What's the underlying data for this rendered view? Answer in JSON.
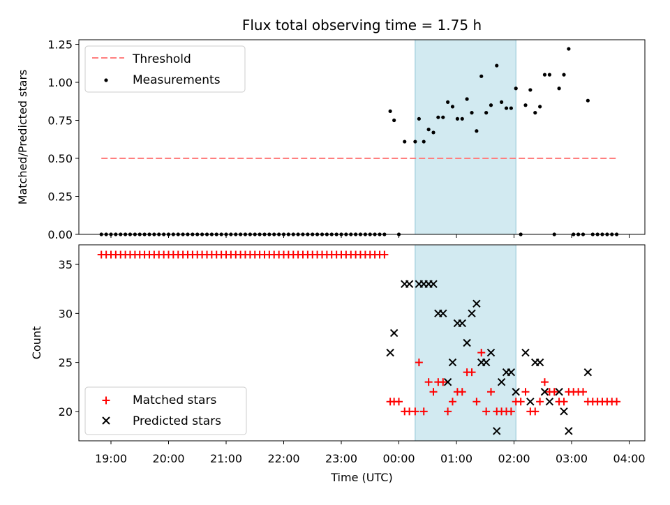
{
  "chart_data": [
    {
      "type": "scatter",
      "title": "Flux total observing time = 1.75 h",
      "ylabel": "Matched/Predicted stars",
      "xlabel": "",
      "ylim": [
        0,
        1.28
      ],
      "yticks": [
        "0.00",
        "0.25",
        "0.50",
        "0.75",
        "1.00",
        "1.25"
      ],
      "x_unit": "hours from 00:00 UTC",
      "shaded_region": [
        0.283,
        2.033
      ],
      "legend": {
        "position": "top-left",
        "threshold_label": "Threshold",
        "measurements_label": "Measurements"
      },
      "threshold": {
        "value": 0.5,
        "x": [
          -5.167,
          3.8
        ],
        "color": "#ff7f7f"
      },
      "measurements": [
        [
          -5.167,
          0
        ],
        [
          -5.083,
          0
        ],
        [
          -5.0,
          0
        ],
        [
          -4.917,
          0
        ],
        [
          -4.833,
          0
        ],
        [
          -4.75,
          0
        ],
        [
          -4.667,
          0
        ],
        [
          -4.583,
          0
        ],
        [
          -4.5,
          0
        ],
        [
          -4.417,
          0
        ],
        [
          -4.333,
          0
        ],
        [
          -4.25,
          0
        ],
        [
          -4.167,
          0
        ],
        [
          -4.083,
          0
        ],
        [
          -4.0,
          0
        ],
        [
          -3.917,
          0
        ],
        [
          -3.833,
          0
        ],
        [
          -3.75,
          0
        ],
        [
          -3.667,
          0
        ],
        [
          -3.583,
          0
        ],
        [
          -3.5,
          0
        ],
        [
          -3.417,
          0
        ],
        [
          -3.333,
          0
        ],
        [
          -3.25,
          0
        ],
        [
          -3.167,
          0
        ],
        [
          -3.083,
          0
        ],
        [
          -3.0,
          0
        ],
        [
          -2.917,
          0
        ],
        [
          -2.833,
          0
        ],
        [
          -2.75,
          0
        ],
        [
          -2.667,
          0
        ],
        [
          -2.583,
          0
        ],
        [
          -2.5,
          0
        ],
        [
          -2.417,
          0
        ],
        [
          -2.333,
          0
        ],
        [
          -2.25,
          0
        ],
        [
          -2.167,
          0
        ],
        [
          -2.083,
          0
        ],
        [
          -2.0,
          0
        ],
        [
          -1.917,
          0
        ],
        [
          -1.833,
          0
        ],
        [
          -1.75,
          0
        ],
        [
          -1.667,
          0
        ],
        [
          -1.583,
          0
        ],
        [
          -1.5,
          0
        ],
        [
          -1.417,
          0
        ],
        [
          -1.333,
          0
        ],
        [
          -1.25,
          0
        ],
        [
          -1.167,
          0
        ],
        [
          -1.083,
          0
        ],
        [
          -1.0,
          0
        ],
        [
          -0.917,
          0
        ],
        [
          -0.833,
          0
        ],
        [
          -0.75,
          0
        ],
        [
          -0.667,
          0
        ],
        [
          -0.583,
          0
        ],
        [
          -0.5,
          0
        ],
        [
          -0.417,
          0
        ],
        [
          -0.333,
          0
        ],
        [
          -0.25,
          0
        ],
        [
          -0.15,
          0.81
        ],
        [
          -0.083,
          0.75
        ],
        [
          0.0,
          0
        ],
        [
          0.1,
          0.61
        ],
        [
          0.283,
          0.61
        ],
        [
          0.35,
          0.76
        ],
        [
          0.433,
          0.61
        ],
        [
          0.517,
          0.69
        ],
        [
          0.6,
          0.67
        ],
        [
          0.683,
          0.77
        ],
        [
          0.767,
          0.77
        ],
        [
          0.85,
          0.87
        ],
        [
          0.933,
          0.84
        ],
        [
          1.017,
          0.76
        ],
        [
          1.1,
          0.76
        ],
        [
          1.183,
          0.89
        ],
        [
          1.267,
          0.8
        ],
        [
          1.35,
          0.68
        ],
        [
          1.433,
          1.04
        ],
        [
          1.517,
          0.8
        ],
        [
          1.6,
          0.85
        ],
        [
          1.7,
          1.11
        ],
        [
          1.783,
          0.87
        ],
        [
          1.867,
          0.83
        ],
        [
          1.95,
          0.83
        ],
        [
          2.033,
          0.96
        ],
        [
          2.117,
          0
        ],
        [
          2.2,
          0.85
        ],
        [
          2.283,
          0.95
        ],
        [
          2.367,
          0.8
        ],
        [
          2.45,
          0.84
        ],
        [
          2.533,
          1.05
        ],
        [
          2.617,
          1.05
        ],
        [
          2.7,
          0
        ],
        [
          2.783,
          0.96
        ],
        [
          2.867,
          1.05
        ],
        [
          2.95,
          1.22
        ],
        [
          3.033,
          0
        ],
        [
          3.117,
          0
        ],
        [
          3.2,
          0
        ],
        [
          3.283,
          0.88
        ],
        [
          3.367,
          0
        ],
        [
          3.45,
          0
        ],
        [
          3.533,
          0
        ],
        [
          3.617,
          0
        ],
        [
          3.7,
          0
        ],
        [
          3.783,
          0
        ]
      ]
    },
    {
      "type": "scatter",
      "title": "",
      "ylabel": "Count",
      "xlabel": "Time (UTC)",
      "ylim": [
        17.0,
        37.0
      ],
      "yticks": [
        "20",
        "25",
        "30",
        "35"
      ],
      "xticks": [
        "19:00",
        "20:00",
        "21:00",
        "22:00",
        "23:00",
        "00:00",
        "01:00",
        "02:00",
        "03:00",
        "04:00"
      ],
      "shaded_region": [
        0.283,
        2.033
      ],
      "legend": {
        "position": "bottom-left",
        "matched_label": "Matched stars",
        "predicted_label": "Predicted stars"
      },
      "matched_stars": [
        [
          -5.167,
          36
        ],
        [
          -5.083,
          36
        ],
        [
          -5.0,
          36
        ],
        [
          -4.917,
          36
        ],
        [
          -4.833,
          36
        ],
        [
          -4.75,
          36
        ],
        [
          -4.667,
          36
        ],
        [
          -4.583,
          36
        ],
        [
          -4.5,
          36
        ],
        [
          -4.417,
          36
        ],
        [
          -4.333,
          36
        ],
        [
          -4.25,
          36
        ],
        [
          -4.167,
          36
        ],
        [
          -4.083,
          36
        ],
        [
          -4.0,
          36
        ],
        [
          -3.917,
          36
        ],
        [
          -3.833,
          36
        ],
        [
          -3.75,
          36
        ],
        [
          -3.667,
          36
        ],
        [
          -3.583,
          36
        ],
        [
          -3.5,
          36
        ],
        [
          -3.417,
          36
        ],
        [
          -3.333,
          36
        ],
        [
          -3.25,
          36
        ],
        [
          -3.167,
          36
        ],
        [
          -3.083,
          36
        ],
        [
          -3.0,
          36
        ],
        [
          -2.917,
          36
        ],
        [
          -2.833,
          36
        ],
        [
          -2.75,
          36
        ],
        [
          -2.667,
          36
        ],
        [
          -2.583,
          36
        ],
        [
          -2.5,
          36
        ],
        [
          -2.417,
          36
        ],
        [
          -2.333,
          36
        ],
        [
          -2.25,
          36
        ],
        [
          -2.167,
          36
        ],
        [
          -2.083,
          36
        ],
        [
          -2.0,
          36
        ],
        [
          -1.917,
          36
        ],
        [
          -1.833,
          36
        ],
        [
          -1.75,
          36
        ],
        [
          -1.667,
          36
        ],
        [
          -1.583,
          36
        ],
        [
          -1.5,
          36
        ],
        [
          -1.417,
          36
        ],
        [
          -1.333,
          36
        ],
        [
          -1.25,
          36
        ],
        [
          -1.167,
          36
        ],
        [
          -1.083,
          36
        ],
        [
          -1.0,
          36
        ],
        [
          -0.917,
          36
        ],
        [
          -0.833,
          36
        ],
        [
          -0.75,
          36
        ],
        [
          -0.667,
          36
        ],
        [
          -0.583,
          36
        ],
        [
          -0.5,
          36
        ],
        [
          -0.417,
          36
        ],
        [
          -0.333,
          36
        ],
        [
          -0.25,
          36
        ],
        [
          -0.15,
          21
        ],
        [
          -0.083,
          21
        ],
        [
          0.0,
          21
        ],
        [
          0.1,
          20
        ],
        [
          0.183,
          20
        ],
        [
          0.283,
          20
        ],
        [
          0.35,
          25
        ],
        [
          0.433,
          20
        ],
        [
          0.517,
          23
        ],
        [
          0.6,
          22
        ],
        [
          0.683,
          23
        ],
        [
          0.767,
          23
        ],
        [
          0.85,
          20
        ],
        [
          0.933,
          21
        ],
        [
          1.017,
          22
        ],
        [
          1.1,
          22
        ],
        [
          1.183,
          24
        ],
        [
          1.267,
          24
        ],
        [
          1.35,
          21
        ],
        [
          1.433,
          26
        ],
        [
          1.517,
          20
        ],
        [
          1.6,
          22
        ],
        [
          1.7,
          20
        ],
        [
          1.783,
          20
        ],
        [
          1.867,
          20
        ],
        [
          1.95,
          20
        ],
        [
          2.033,
          21
        ],
        [
          2.117,
          21
        ],
        [
          2.2,
          22
        ],
        [
          2.283,
          20
        ],
        [
          2.367,
          20
        ],
        [
          2.45,
          21
        ],
        [
          2.533,
          23
        ],
        [
          2.617,
          22
        ],
        [
          2.7,
          22
        ],
        [
          2.783,
          21
        ],
        [
          2.867,
          21
        ],
        [
          2.95,
          22
        ],
        [
          3.033,
          22
        ],
        [
          3.117,
          22
        ],
        [
          3.2,
          22
        ],
        [
          3.283,
          21
        ],
        [
          3.367,
          21
        ],
        [
          3.45,
          21
        ],
        [
          3.533,
          21
        ],
        [
          3.617,
          21
        ],
        [
          3.7,
          21
        ],
        [
          3.783,
          21
        ]
      ],
      "predicted_stars": [
        [
          -0.15,
          26
        ],
        [
          -0.083,
          28
        ],
        [
          0.1,
          33
        ],
        [
          0.183,
          33
        ],
        [
          0.35,
          33
        ],
        [
          0.433,
          33
        ],
        [
          0.517,
          33
        ],
        [
          0.6,
          33
        ],
        [
          0.683,
          30
        ],
        [
          0.767,
          30
        ],
        [
          0.85,
          23
        ],
        [
          0.933,
          25
        ],
        [
          1.017,
          29
        ],
        [
          1.1,
          29
        ],
        [
          1.183,
          27
        ],
        [
          1.267,
          30
        ],
        [
          1.35,
          31
        ],
        [
          1.433,
          25
        ],
        [
          1.517,
          25
        ],
        [
          1.6,
          26
        ],
        [
          1.7,
          18
        ],
        [
          1.783,
          23
        ],
        [
          1.867,
          24
        ],
        [
          1.95,
          24
        ],
        [
          2.033,
          22
        ],
        [
          2.2,
          26
        ],
        [
          2.283,
          21
        ],
        [
          2.367,
          25
        ],
        [
          2.45,
          25
        ],
        [
          2.533,
          22
        ],
        [
          2.617,
          21
        ],
        [
          2.783,
          22
        ],
        [
          2.867,
          20
        ],
        [
          2.95,
          18
        ],
        [
          3.283,
          24
        ]
      ]
    }
  ]
}
